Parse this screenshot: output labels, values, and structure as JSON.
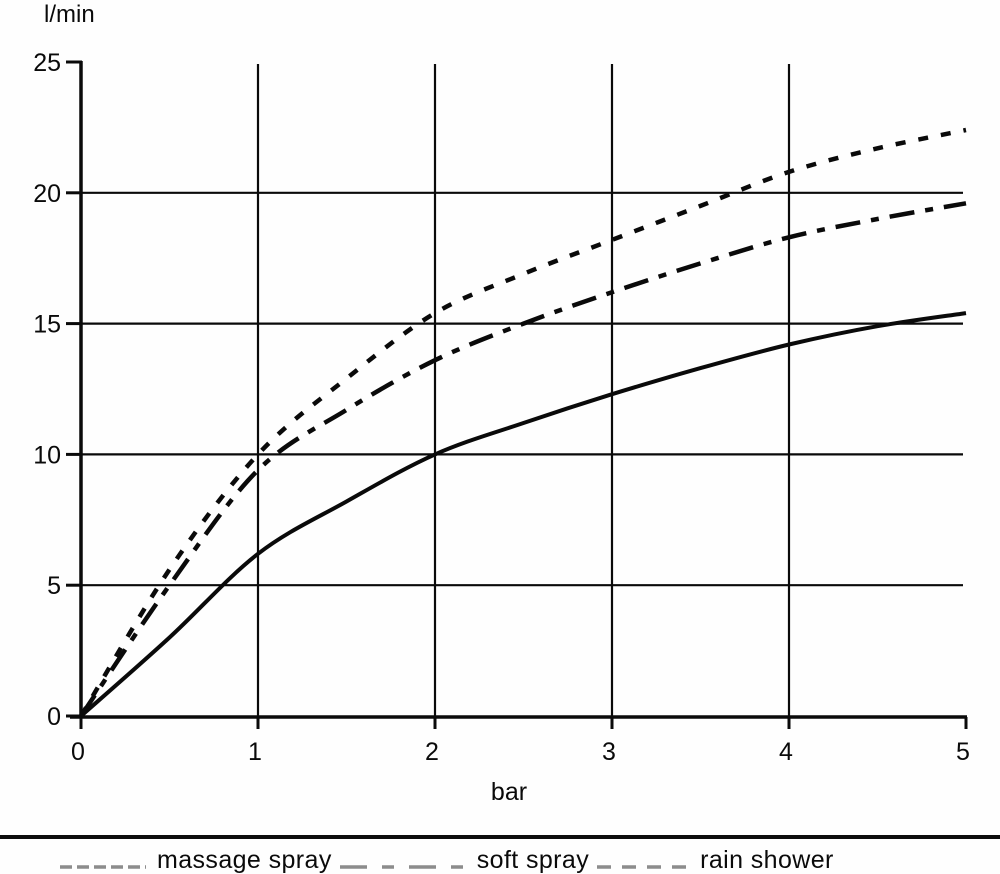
{
  "chart_data": {
    "type": "line",
    "title": "",
    "xlabel": "bar",
    "ylabel": "l/min",
    "xlim": [
      0,
      5
    ],
    "ylim": [
      0,
      25
    ],
    "x_ticks": [
      "0",
      "1",
      "2",
      "3",
      "4",
      "5"
    ],
    "y_ticks": [
      "0",
      "5",
      "10",
      "15",
      "20",
      "25"
    ],
    "grid": true,
    "legend_position": "bottom",
    "x": [
      0,
      0.5,
      1,
      1.5,
      2,
      2.5,
      3,
      3.5,
      4,
      4.5,
      5
    ],
    "series": [
      {
        "name": "massage spray",
        "line_style": "solid",
        "color": "#0a0a0a",
        "values": [
          0,
          3.0,
          6.2,
          8.2,
          10.0,
          11.2,
          12.3,
          13.3,
          14.2,
          14.9,
          15.4
        ]
      },
      {
        "name": "soft spray",
        "line_style": "dash-dot",
        "color": "#0a0a0a",
        "values": [
          0,
          5.0,
          9.4,
          11.7,
          13.6,
          15.0,
          16.2,
          17.3,
          18.3,
          19.0,
          19.6
        ]
      },
      {
        "name": "rain shower",
        "line_style": "dashed",
        "color": "#0a0a0a",
        "values": [
          0,
          5.6,
          10.0,
          12.9,
          15.4,
          16.9,
          18.2,
          19.5,
          20.8,
          21.7,
          22.4
        ]
      }
    ]
  },
  "legend": {
    "sample_color": "#8c8c8c",
    "items": [
      {
        "label": "massage spray",
        "sample_style": "dense-dash"
      },
      {
        "label": "soft spray",
        "sample_style": "long-short-dash"
      },
      {
        "label": "rain shower",
        "sample_style": "even-dash"
      }
    ]
  },
  "colors": {
    "ink": "#0a0a0a",
    "grid": "#000000",
    "background": "#fefefe"
  }
}
